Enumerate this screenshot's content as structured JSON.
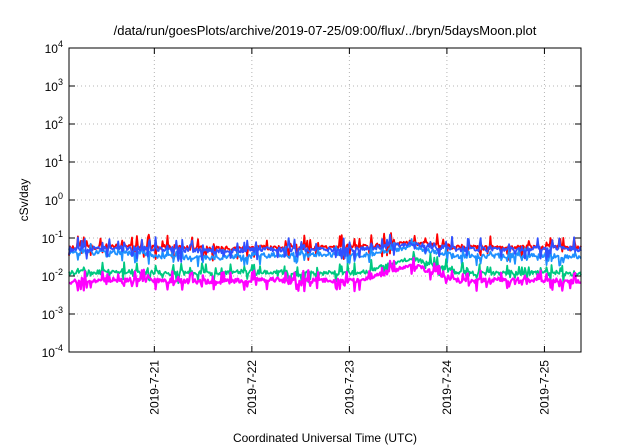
{
  "chart_data": {
    "type": "line",
    "title": "/data/run/goesPlots/archive/2019-07-25/09:00/flux/../bryn/5daysMoon.plot",
    "xlabel": "Coordinated Universal Time (UTC)",
    "ylabel": "cSv/day",
    "y_scale": "log",
    "ylim": [
      0.0001,
      10000
    ],
    "y_ticks": [
      {
        "value": 0.0001,
        "base": "10",
        "exp": "-4"
      },
      {
        "value": 0.001,
        "base": "10",
        "exp": "-3"
      },
      {
        "value": 0.01,
        "base": "10",
        "exp": "-2"
      },
      {
        "value": 0.1,
        "base": "10",
        "exp": "-1"
      },
      {
        "value": 1,
        "base": "10",
        "exp": "0"
      },
      {
        "value": 10,
        "base": "10",
        "exp": "1"
      },
      {
        "value": 100,
        "base": "10",
        "exp": "2"
      },
      {
        "value": 1000,
        "base": "10",
        "exp": "3"
      },
      {
        "value": 10000,
        "base": "10",
        "exp": "4"
      }
    ],
    "xlim": [
      "2019-07-20 03:00",
      "2019-07-25 09:00"
    ],
    "x_ticks": [
      "2019-7-21",
      "2019-7-22",
      "2019-7-23",
      "2019-7-24",
      "2019-7-25"
    ],
    "grid": true,
    "series_colors": [
      "#ff0000",
      "#1e90ff",
      "#00c880",
      "#ff00ff",
      "#3050ff"
    ],
    "series": [
      {
        "color": "#ff0000",
        "x": [
          "2019-07-20 03:00",
          "2019-07-20 15:00",
          "2019-07-21 03:00",
          "2019-07-21 15:00",
          "2019-07-22 03:00",
          "2019-07-22 15:00",
          "2019-07-23 03:00",
          "2019-07-23 15:00",
          "2019-07-24 03:00",
          "2019-07-24 15:00",
          "2019-07-25 03:00",
          "2019-07-25 09:00"
        ],
        "values": [
          0.055,
          0.06,
          0.058,
          0.052,
          0.057,
          0.055,
          0.058,
          0.075,
          0.057,
          0.055,
          0.06,
          0.055
        ]
      },
      {
        "color": "#1e90ff",
        "x": [
          "2019-07-20 03:00",
          "2019-07-20 15:00",
          "2019-07-21 03:00",
          "2019-07-21 15:00",
          "2019-07-22 03:00",
          "2019-07-22 15:00",
          "2019-07-23 03:00",
          "2019-07-23 15:00",
          "2019-07-24 03:00",
          "2019-07-24 15:00",
          "2019-07-25 03:00",
          "2019-07-25 09:00"
        ],
        "values": [
          0.04,
          0.042,
          0.032,
          0.03,
          0.035,
          0.038,
          0.034,
          0.06,
          0.033,
          0.035,
          0.033,
          0.032
        ]
      },
      {
        "color": "#00c880",
        "x": [
          "2019-07-20 03:00",
          "2019-07-20 15:00",
          "2019-07-21 03:00",
          "2019-07-21 15:00",
          "2019-07-22 03:00",
          "2019-07-22 15:00",
          "2019-07-23 03:00",
          "2019-07-23 15:00",
          "2019-07-24 03:00",
          "2019-07-24 15:00",
          "2019-07-25 03:00",
          "2019-07-25 09:00"
        ],
        "values": [
          0.012,
          0.013,
          0.012,
          0.012,
          0.013,
          0.012,
          0.012,
          0.03,
          0.012,
          0.012,
          0.012,
          0.011
        ]
      },
      {
        "color": "#ff00ff",
        "x": [
          "2019-07-20 03:00",
          "2019-07-20 15:00",
          "2019-07-21 03:00",
          "2019-07-21 15:00",
          "2019-07-22 03:00",
          "2019-07-22 15:00",
          "2019-07-23 03:00",
          "2019-07-23 15:00",
          "2019-07-24 03:00",
          "2019-07-24 15:00",
          "2019-07-25 03:00",
          "2019-07-25 09:00"
        ],
        "values": [
          0.007,
          0.008,
          0.0075,
          0.007,
          0.008,
          0.0075,
          0.0075,
          0.02,
          0.0075,
          0.008,
          0.0075,
          0.0068
        ]
      },
      {
        "color": "#3050ff",
        "x": [
          "2019-07-20 03:00",
          "2019-07-20 15:00",
          "2019-07-21 03:00",
          "2019-07-21 15:00",
          "2019-07-22 03:00",
          "2019-07-22 15:00",
          "2019-07-23 03:00",
          "2019-07-23 15:00",
          "2019-07-24 03:00",
          "2019-07-24 15:00",
          "2019-07-25 03:00",
          "2019-07-25 09:00"
        ],
        "values": [
          0.05,
          0.055,
          0.05,
          0.045,
          0.05,
          0.05,
          0.05,
          0.07,
          0.05,
          0.05,
          0.055,
          0.05
        ]
      }
    ]
  }
}
